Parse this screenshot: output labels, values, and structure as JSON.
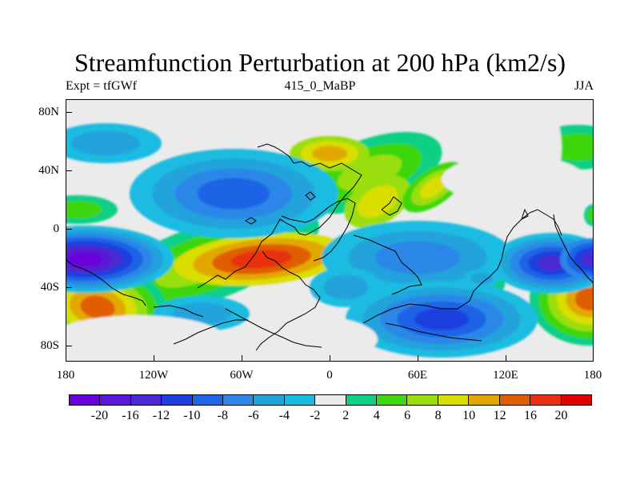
{
  "title": "Streamfunction Perturbation at 200 hPa (km2/s)",
  "subtitle_left": "Expt = tfGWf",
  "subtitle_center": "415_0_MaBP",
  "subtitle_right": "JJA",
  "y_labels": [
    "80N",
    "40N",
    "0",
    "40S",
    "80S"
  ],
  "x_labels": [
    "180",
    "120W",
    "60W",
    "0",
    "60E",
    "120E",
    "180"
  ],
  "colorbar": {
    "labels": [
      "-20",
      "-16",
      "-12",
      "-10",
      "-8",
      "-6",
      "-4",
      "-2",
      "2",
      "4",
      "6",
      "8",
      "10",
      "12",
      "16",
      "20"
    ],
    "colors": [
      "#6a00dc",
      "#5a19d4",
      "#4a2ad0",
      "#1c3fe0",
      "#1e64e6",
      "#2c87e8",
      "#20a3dc",
      "#1bbbe1",
      "#ebebeb",
      "#10cf86",
      "#3ed60f",
      "#9ade10",
      "#d9de00",
      "#e2a800",
      "#e05d00",
      "#e83010",
      "#e00000"
    ]
  },
  "map_colors": {
    "background": "#ebebeb",
    "coast": "#000000"
  }
}
